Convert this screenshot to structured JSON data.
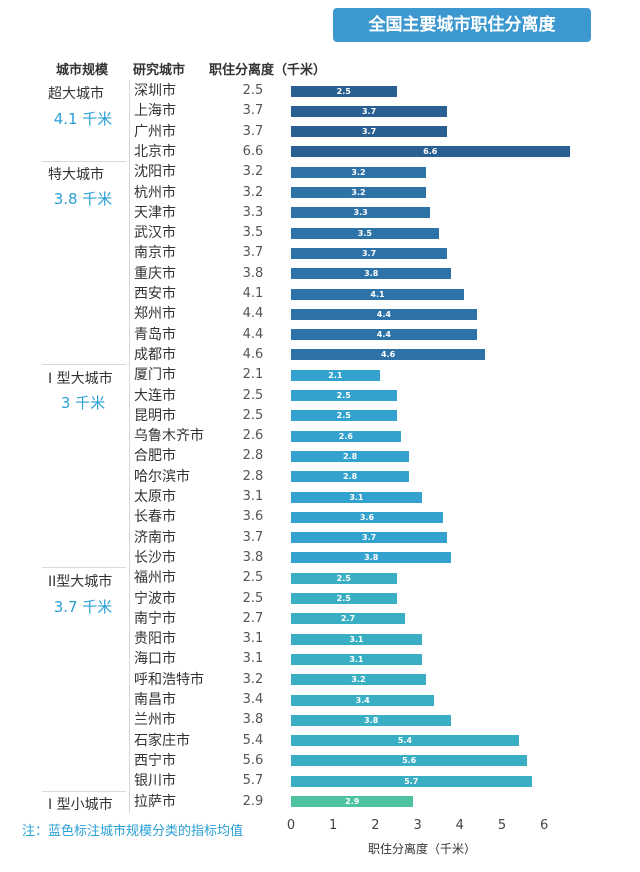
{
  "title": "全国主要城市职住分离度",
  "headers": {
    "scale": "城市规模",
    "city": "研究城市",
    "value": "职住分离度（千米）"
  },
  "note": "注：蓝色标注城市规模分类的指标均值",
  "groups": [
    {
      "name": "超大城市",
      "avg": "4.1 千米"
    },
    {
      "name": "特大城市",
      "avg": "3.8 千米"
    },
    {
      "name": "I 型大城市",
      "avg": "3 千米"
    },
    {
      "name": "II型大城市",
      "avg": "3.7 千米"
    },
    {
      "name": "I 型小城市",
      "avg": ""
    }
  ],
  "chart_data": {
    "type": "bar",
    "orientation": "horizontal",
    "title": "全国主要城市职住分离度",
    "xlabel": "职住分离度（千米）",
    "xlim": [
      0,
      6.6
    ],
    "xticks": [
      "0",
      "1",
      "2",
      "3",
      "4",
      "5",
      "6"
    ],
    "categories": [
      "深圳市",
      "上海市",
      "广州市",
      "北京市",
      "沈阳市",
      "杭州市",
      "天津市",
      "武汉市",
      "南京市",
      "重庆市",
      "西安市",
      "郑州市",
      "青岛市",
      "成都市",
      "厦门市",
      "大连市",
      "昆明市",
      "乌鲁木齐市",
      "合肥市",
      "哈尔滨市",
      "太原市",
      "长春市",
      "济南市",
      "长沙市",
      "福州市",
      "宁波市",
      "南宁市",
      "贵阳市",
      "海口市",
      "呼和浩特市",
      "南昌市",
      "兰州市",
      "石家庄市",
      "西宁市",
      "银川市",
      "拉萨市"
    ],
    "values": [
      2.5,
      3.7,
      3.7,
      6.6,
      3.2,
      3.2,
      3.3,
      3.5,
      3.7,
      3.8,
      4.1,
      4.4,
      4.4,
      4.6,
      2.1,
      2.5,
      2.5,
      2.6,
      2.8,
      2.8,
      3.1,
      3.6,
      3.7,
      3.8,
      2.5,
      2.5,
      2.7,
      3.1,
      3.1,
      3.2,
      3.4,
      3.8,
      5.4,
      5.6,
      5.7,
      2.9
    ],
    "group_index": [
      0,
      0,
      0,
      0,
      1,
      1,
      1,
      1,
      1,
      1,
      1,
      1,
      1,
      1,
      2,
      2,
      2,
      2,
      2,
      2,
      2,
      2,
      2,
      2,
      3,
      3,
      3,
      3,
      3,
      3,
      3,
      3,
      3,
      3,
      3,
      4
    ],
    "group_colors": [
      "#2a5f91",
      "#2e73a8",
      "#34a2cf",
      "#3aafc4",
      "#4ec3a2"
    ]
  }
}
